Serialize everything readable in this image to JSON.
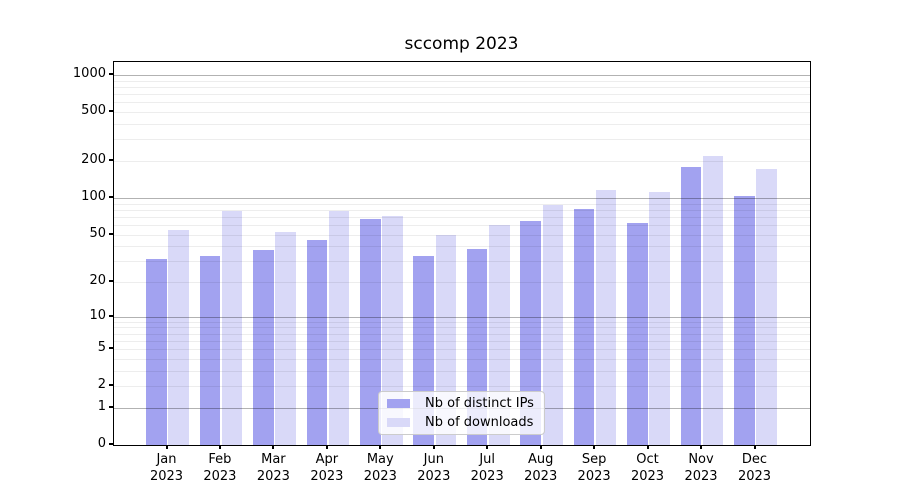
{
  "title": "sccomp 2023",
  "legend": {
    "items": [
      {
        "label": "Nb of distinct IPs",
        "color": "#a2a2f0"
      },
      {
        "label": "Nb of downloads",
        "color": "#d9d9f8"
      }
    ]
  },
  "chart_data": {
    "type": "bar",
    "title": "sccomp 2023",
    "categories": [
      "Jan",
      "Feb",
      "Mar",
      "Apr",
      "May",
      "Jun",
      "Jul",
      "Aug",
      "Sep",
      "Oct",
      "Nov",
      "Dec"
    ],
    "year_label": "2023",
    "series": [
      {
        "name": "Nb of distinct IPs",
        "color": "#a2a2f0",
        "values": [
          31,
          33,
          37,
          45,
          67,
          33,
          38,
          65,
          81,
          62,
          179,
          104
        ]
      },
      {
        "name": "Nb of downloads",
        "color": "#d9d9f8",
        "values": [
          54,
          78,
          52,
          78,
          71,
          50,
          60,
          87,
          116,
          112,
          221,
          173
        ]
      }
    ],
    "xlabel": "",
    "ylabel": "",
    "yscale": "log1p",
    "y_ticks": [
      0,
      1,
      2,
      5,
      10,
      20,
      50,
      100,
      200,
      500,
      1000
    ],
    "ylim": [
      0,
      1150
    ],
    "grid": "horizontal; light minor lines each integer step, darker lines at 1, 10, 100, 1000; drawn over bars",
    "legend_position": "inside lower-center"
  }
}
